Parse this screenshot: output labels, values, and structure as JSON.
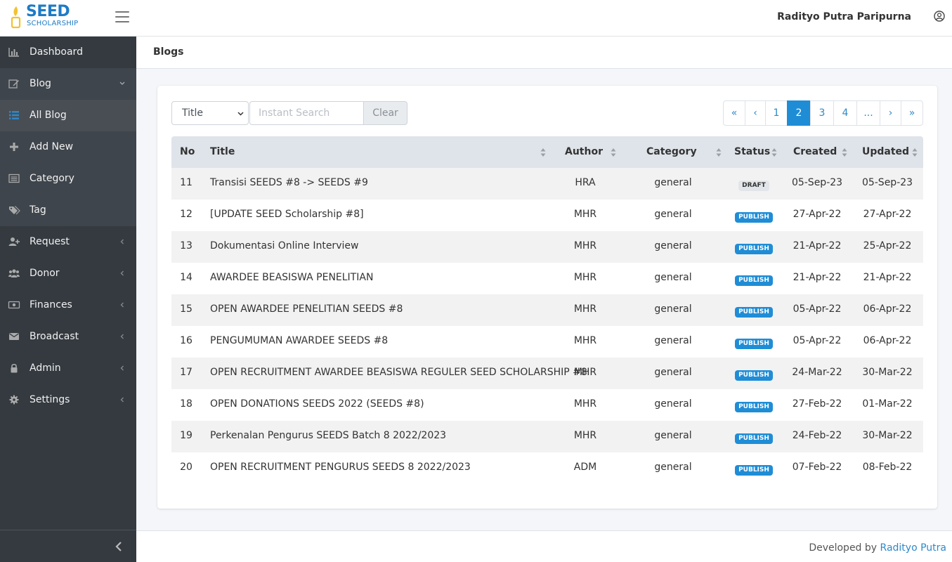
{
  "app": {
    "logo_main": "SEED",
    "logo_sub": "SCHOLARSHIP",
    "user_name": "Radityo Putra Paripurna"
  },
  "sidebar": {
    "items": [
      {
        "label": "Dashboard",
        "icon": "bar-chart-icon"
      },
      {
        "label": "Blog",
        "icon": "edit-icon"
      },
      {
        "label": "All Blog",
        "icon": "list-icon"
      },
      {
        "label": "Add New",
        "icon": "plus-icon"
      },
      {
        "label": "Category",
        "icon": "category-icon"
      },
      {
        "label": "Tag",
        "icon": "tags-icon"
      },
      {
        "label": "Request",
        "icon": "user-plus-icon"
      },
      {
        "label": "Donor",
        "icon": "users-icon"
      },
      {
        "label": "Finances",
        "icon": "money-icon"
      },
      {
        "label": "Broadcast",
        "icon": "envelope-icon"
      },
      {
        "label": "Admin",
        "icon": "lock-icon"
      },
      {
        "label": "Settings",
        "icon": "gear-icon"
      }
    ]
  },
  "page": {
    "title": "Blogs"
  },
  "filters": {
    "select_value": "Title",
    "search_placeholder": "Instant Search",
    "clear_label": "Clear"
  },
  "pagination": {
    "first": "«",
    "prev": "‹",
    "pages": [
      "1",
      "2",
      "3",
      "4",
      "..."
    ],
    "current": "2",
    "next": "›",
    "last": "»"
  },
  "table": {
    "headers": {
      "no": "No",
      "title": "Title",
      "author": "Author",
      "category": "Category",
      "status": "Status",
      "created": "Created",
      "updated": "Updated"
    },
    "rows": [
      {
        "no": "11",
        "title": "Transisi SEEDS #8 -> SEEDS #9",
        "author": "HRA",
        "category": "general",
        "status": "DRAFT",
        "created": "05-Sep-23",
        "updated": "05-Sep-23"
      },
      {
        "no": "12",
        "title": "[UPDATE SEED Scholarship #8]",
        "author": "MHR",
        "category": "general",
        "status": "PUBLISH",
        "created": "27-Apr-22",
        "updated": "27-Apr-22"
      },
      {
        "no": "13",
        "title": "Dokumentasi Online Interview",
        "author": "MHR",
        "category": "general",
        "status": "PUBLISH",
        "created": "21-Apr-22",
        "updated": "25-Apr-22"
      },
      {
        "no": "14",
        "title": "AWARDEE BEASISWA PENELITIAN",
        "author": "MHR",
        "category": "general",
        "status": "PUBLISH",
        "created": "21-Apr-22",
        "updated": "21-Apr-22"
      },
      {
        "no": "15",
        "title": "OPEN AWARDEE PENELITIAN SEEDS #8",
        "author": "MHR",
        "category": "general",
        "status": "PUBLISH",
        "created": "05-Apr-22",
        "updated": "06-Apr-22"
      },
      {
        "no": "16",
        "title": "PENGUMUMAN AWARDEE SEEDS #8",
        "author": "MHR",
        "category": "general",
        "status": "PUBLISH",
        "created": "05-Apr-22",
        "updated": "06-Apr-22"
      },
      {
        "no": "17",
        "title": "OPEN RECRUITMENT AWARDEE BEASISWA REGULER SEED SCHOLARSHIP #8",
        "author": "MHR",
        "category": "general",
        "status": "PUBLISH",
        "created": "24-Mar-22",
        "updated": "30-Mar-22"
      },
      {
        "no": "18",
        "title": "OPEN DONATIONS SEEDS 2022 (SEEDS #8)",
        "author": "MHR",
        "category": "general",
        "status": "PUBLISH",
        "created": "27-Feb-22",
        "updated": "01-Mar-22"
      },
      {
        "no": "19",
        "title": "Perkenalan Pengurus SEEDS Batch 8 2022/2023",
        "author": "MHR",
        "category": "general",
        "status": "PUBLISH",
        "created": "24-Feb-22",
        "updated": "30-Mar-22"
      },
      {
        "no": "20",
        "title": "OPEN RECRUITMENT PENGURUS SEEDS 8 2022/2023",
        "author": "ADM",
        "category": "general",
        "status": "PUBLISH",
        "created": "07-Feb-22",
        "updated": "08-Feb-22"
      }
    ]
  },
  "footer": {
    "prefix": "Developed by",
    "author_link": "Radityo Putra"
  },
  "colors": {
    "sidebar_bg": "#343a40",
    "accent": "#1f8dd6",
    "brand": "#1d7bc6",
    "logo_yellow": "#f2c230"
  }
}
